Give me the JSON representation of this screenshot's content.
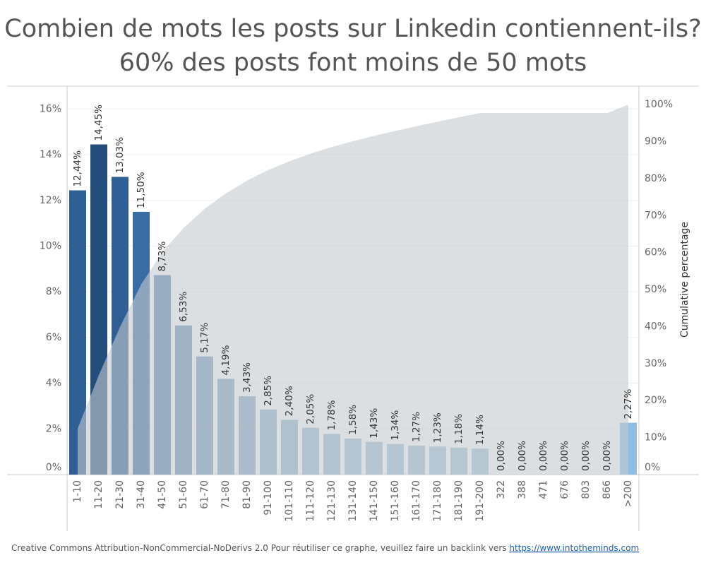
{
  "chart_data": {
    "type": "bar",
    "title": "Combien de mots les posts sur Linkedin contiennent-ils?",
    "subtitle": "60% des posts font moins de 50 mots",
    "y2_label": "Cumulative percentage",
    "categories": [
      "1-10",
      "11-20",
      "21-30",
      "31-40",
      "41-50",
      "51-60",
      "61-70",
      "71-80",
      "81-90",
      "91-100",
      "101-110",
      "111-120",
      "121-130",
      "131-140",
      "141-150",
      "151-160",
      "161-170",
      "171-180",
      "181-190",
      "191-200",
      "322",
      "388",
      "471",
      "676",
      "803",
      "866",
      ">200"
    ],
    "values": [
      12.44,
      14.45,
      13.03,
      11.5,
      8.73,
      6.53,
      5.17,
      4.19,
      3.43,
      2.85,
      2.4,
      2.05,
      1.78,
      1.58,
      1.43,
      1.34,
      1.27,
      1.23,
      1.18,
      1.14,
      0,
      0,
      0,
      0,
      0,
      0,
      2.27
    ],
    "value_labels": [
      "12,44%",
      "14,45%",
      "13,03%",
      "11,50%",
      "8,73%",
      "6,53%",
      "5,17%",
      "4,19%",
      "3,43%",
      "2,85%",
      "2,40%",
      "2,05%",
      "1,78%",
      "1,58%",
      "1,43%",
      "1,34%",
      "1,27%",
      "1,23%",
      "1,18%",
      "1,14%",
      "0,00%",
      "0,00%",
      "0,00%",
      "0,00%",
      "0,00%",
      "0,00%",
      "2,27%"
    ],
    "colors": [
      "#2f5f93",
      "#244d7c",
      "#2f5e94",
      "#3a6ca4",
      "#5b81aa",
      "#6a8fb5",
      "#7599be",
      "#7fa2c3",
      "#87a9c8",
      "#8db0cc",
      "#92b4cf",
      "#96b8d2",
      "#99bad3",
      "#9bbcd5",
      "#9dbed6",
      "#9ebfd7",
      "#a0c0d8",
      "#a1c1d9",
      "#a2c2d9",
      "#a3c3da",
      "#a4c4db",
      "#a4c4db",
      "#a4c4db",
      "#a4c4db",
      "#a4c4db",
      "#a4c4db",
      "#8dbde2"
    ],
    "cumulative": {
      "axis": "y2",
      "color": "#c5c9cd",
      "values": [
        12.44,
        26.89,
        39.92,
        51.42,
        60.15,
        66.68,
        71.85,
        76.04,
        79.47,
        82.32,
        84.72,
        86.77,
        88.55,
        90.13,
        91.56,
        92.9,
        94.17,
        95.4,
        96.58,
        97.72,
        97.72,
        97.72,
        97.72,
        97.72,
        97.72,
        97.72,
        99.99
      ]
    },
    "ylim": [
      0,
      17
    ],
    "yticks": [
      {
        "value": 0,
        "label": "0%"
      },
      {
        "value": 2,
        "label": "2%"
      },
      {
        "value": 4,
        "label": "4%"
      },
      {
        "value": 6,
        "label": "6%"
      },
      {
        "value": 8,
        "label": "8%"
      },
      {
        "value": 10,
        "label": "10%"
      },
      {
        "value": 12,
        "label": "12%"
      },
      {
        "value": 14,
        "label": "14%"
      },
      {
        "value": 16,
        "label": "16%"
      }
    ],
    "y2lim": [
      0,
      105
    ],
    "y2ticks": [
      {
        "value": 0,
        "label": "0%"
      },
      {
        "value": 10,
        "label": "10%"
      },
      {
        "value": 20,
        "label": "20%"
      },
      {
        "value": 30,
        "label": "30%"
      },
      {
        "value": 40,
        "label": "40%"
      },
      {
        "value": 50,
        "label": "50%"
      },
      {
        "value": 60,
        "label": "60%"
      },
      {
        "value": 70,
        "label": "70%"
      },
      {
        "value": 80,
        "label": "80%"
      },
      {
        "value": 90,
        "label": "90%"
      },
      {
        "value": 100,
        "label": "100%"
      }
    ],
    "grid": true,
    "footer": "Creative Commons Attribution-NonCommercial-NoDerivs 2.0 Pour réutiliser ce graphe, veuillez faire un backlink vers ",
    "footer_link": "https://www.intotheminds.com"
  }
}
